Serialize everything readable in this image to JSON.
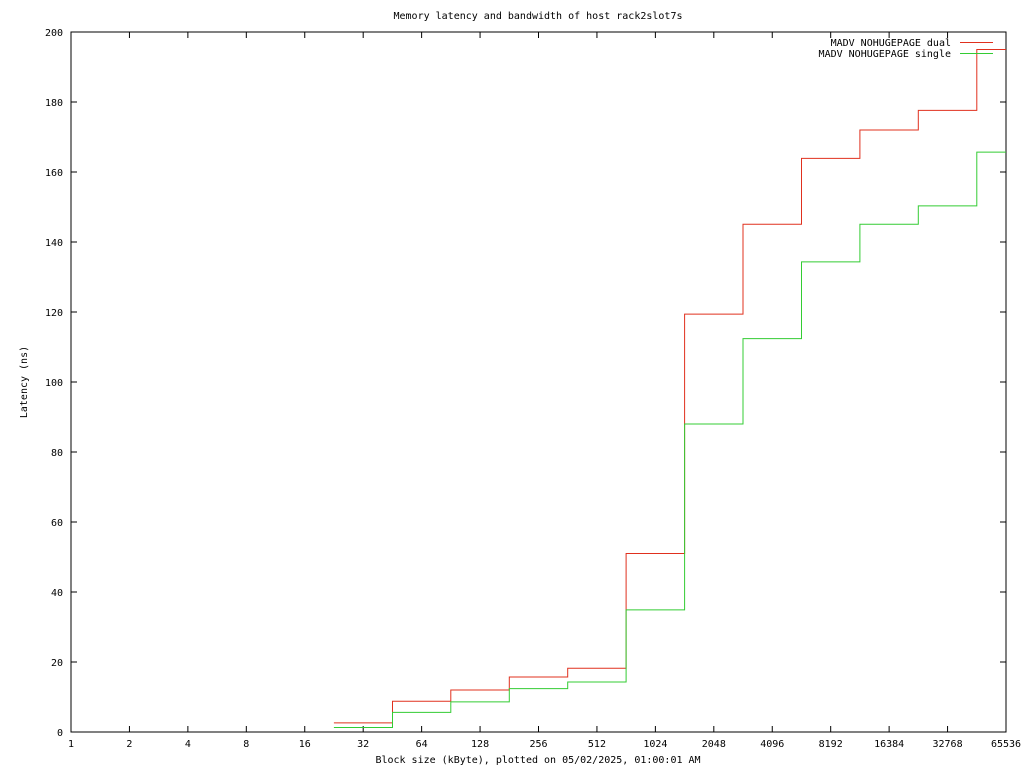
{
  "chart_data": {
    "type": "line",
    "step": true,
    "title": "Memory latency and bandwidth of host rack2slot7s",
    "xlabel": "Block size (kByte), plotted on 05/02/2025, 01:00:01 AM",
    "ylabel": "Latency (ns)",
    "x_scale": "log2",
    "xlim": [
      1,
      65536
    ],
    "ylim": [
      0,
      200
    ],
    "x_ticks": [
      1,
      2,
      4,
      8,
      16,
      32,
      64,
      128,
      256,
      512,
      1024,
      2048,
      4096,
      8192,
      16384,
      32768,
      65536
    ],
    "x_tick_labels": [
      "1",
      "2",
      "4",
      "8",
      "16",
      "32",
      "64",
      "128",
      "256",
      "512",
      "1024",
      "2048",
      "4096",
      "8192",
      "16384",
      "32768",
      "65536"
    ],
    "y_ticks": [
      0,
      20,
      40,
      60,
      80,
      100,
      120,
      140,
      160,
      180,
      200
    ],
    "y_tick_labels": [
      "0",
      "20",
      "40",
      "60",
      "80",
      "100",
      "120",
      "140",
      "160",
      "180",
      "200"
    ],
    "grid": false,
    "legend_position": "top-right",
    "x": [
      22.6,
      45.3,
      90.5,
      181,
      362,
      724,
      1448,
      2896,
      5793,
      11585,
      23170,
      46341
    ],
    "series": [
      {
        "name": "MADV NOHUGEPAGE dual",
        "color": "#e0301e",
        "values": [
          2.6,
          8.8,
          12.0,
          15.7,
          18.2,
          51.0,
          119.4,
          145.1,
          163.9,
          172.0,
          177.6,
          195.0
        ]
      },
      {
        "name": "MADV NOHUGEPAGE single",
        "color": "#33cc33",
        "values": [
          1.3,
          5.6,
          8.6,
          12.4,
          14.3,
          34.9,
          88.0,
          112.4,
          134.3,
          145.1,
          150.3,
          165.7
        ]
      }
    ]
  }
}
